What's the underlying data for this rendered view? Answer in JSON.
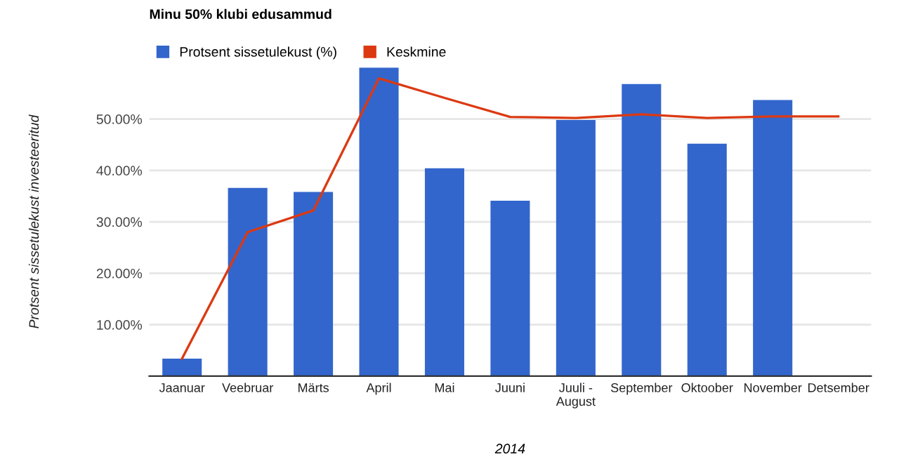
{
  "chart_data": {
    "type": "bar",
    "title": "Minu 50% klubi edusammud",
    "xlabel": "2014",
    "ylabel": "Protsent sissetulekust investeeritud",
    "categories": [
      "Jaanuar",
      "Veebruar",
      "Märts",
      "April",
      "Mai",
      "Juuni",
      "Juuli -\nAugust",
      "September",
      "Oktoober",
      "November",
      "Detsember"
    ],
    "series": [
      {
        "name": "Protsent sissetulekust (%)",
        "color": "#3366cc",
        "values": [
          3.4,
          36.6,
          35.8,
          60.0,
          40.4,
          34.1,
          49.8,
          56.8,
          45.2,
          53.7,
          null
        ]
      },
      {
        "name": "Keskmine",
        "type": "line",
        "color": "#dc3912",
        "values": [
          3.4,
          28.0,
          32.2,
          57.9,
          54.1,
          50.4,
          50.2,
          50.9,
          50.2,
          50.5,
          50.5
        ]
      }
    ],
    "ylim": [
      0,
      60
    ],
    "yticks": [
      {
        "value": 10,
        "label": "10.00%"
      },
      {
        "value": 20,
        "label": "20.00%"
      },
      {
        "value": 30,
        "label": "30.00%"
      },
      {
        "value": 40,
        "label": "40.00%"
      },
      {
        "value": 50,
        "label": "50.00%"
      }
    ],
    "grid": "y",
    "legend": "top left"
  }
}
